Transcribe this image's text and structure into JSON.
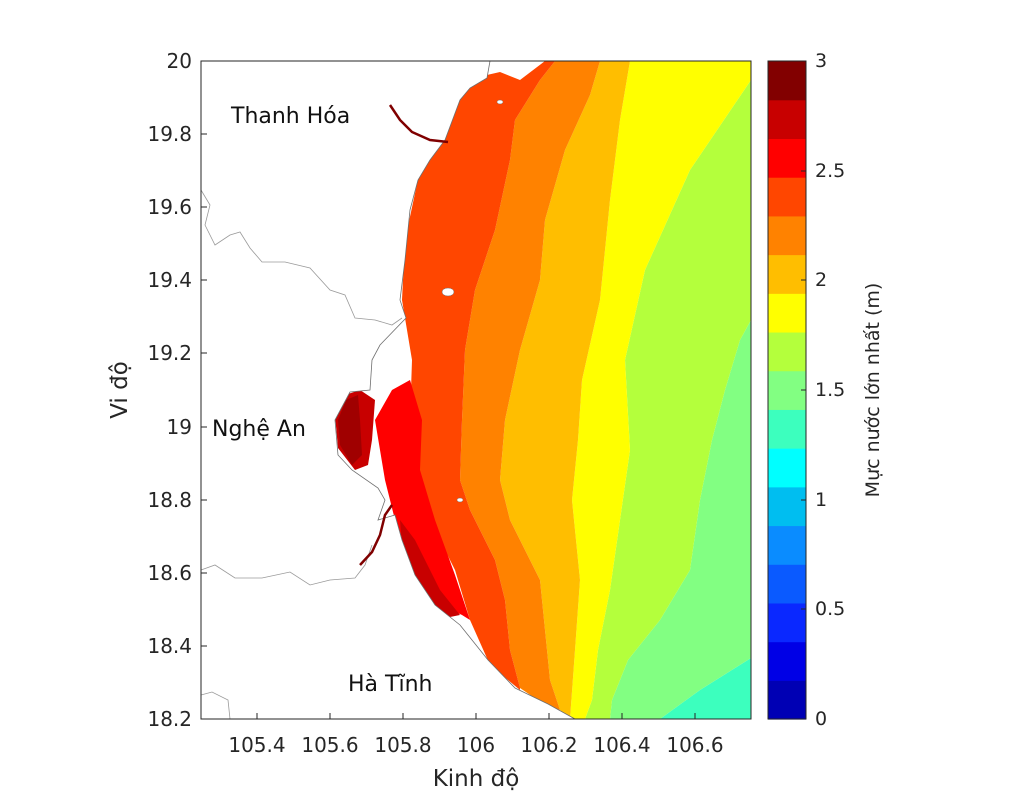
{
  "map": {
    "xlabel": "Kinh độ",
    "ylabel": "Vi độ",
    "x_ticks": [
      "105.4",
      "105.6",
      "105.8",
      "106",
      "106.2",
      "106.4",
      "106.6"
    ],
    "y_ticks": [
      "20",
      "19.8",
      "19.6",
      "19.4",
      "19.2",
      "19",
      "18.8",
      "18.6",
      "18.4",
      "18.2"
    ],
    "regions": [
      {
        "name": "Thanh Hóa"
      },
      {
        "name": "Nghệ An"
      },
      {
        "name": "Hà Tĩnh"
      }
    ]
  },
  "colorbar": {
    "title": "Mực nước lớn nhất (m)",
    "tick_labels": [
      "0",
      "0.5",
      "1",
      "1.5",
      "2",
      "2.5",
      "3"
    ],
    "colors": [
      "#0000b4",
      "#0000e6",
      "#0a28ff",
      "#0a5aff",
      "#0a8cff",
      "#00bef0",
      "#00ffff",
      "#3cffbe",
      "#82ff82",
      "#b4ff3c",
      "#ffff00",
      "#ffbe00",
      "#ff8200",
      "#ff4600",
      "#ff0000",
      "#c80000",
      "#820000"
    ]
  },
  "chart_data": {
    "type": "heatmap",
    "x_axis": {
      "label": "Kinh độ",
      "range": [
        105.25,
        106.75
      ],
      "ticks": [
        105.4,
        105.6,
        105.8,
        106,
        106.2,
        106.4,
        106.6
      ]
    },
    "y_axis": {
      "label": "Vi độ",
      "range": [
        18.2,
        20
      ],
      "ticks": [
        18.2,
        18.4,
        18.6,
        18.8,
        19,
        19.2,
        19.4,
        19.6,
        19.8,
        20
      ]
    },
    "colorbar": {
      "label": "Mực nước lớn nhất (m)",
      "range": [
        0,
        3
      ],
      "ticks": [
        0,
        0.5,
        1,
        1.5,
        2,
        2.5,
        3
      ]
    },
    "annotations": [
      "Thanh Hóa",
      "Nghệ An",
      "Hà Tĩnh"
    ]
  }
}
